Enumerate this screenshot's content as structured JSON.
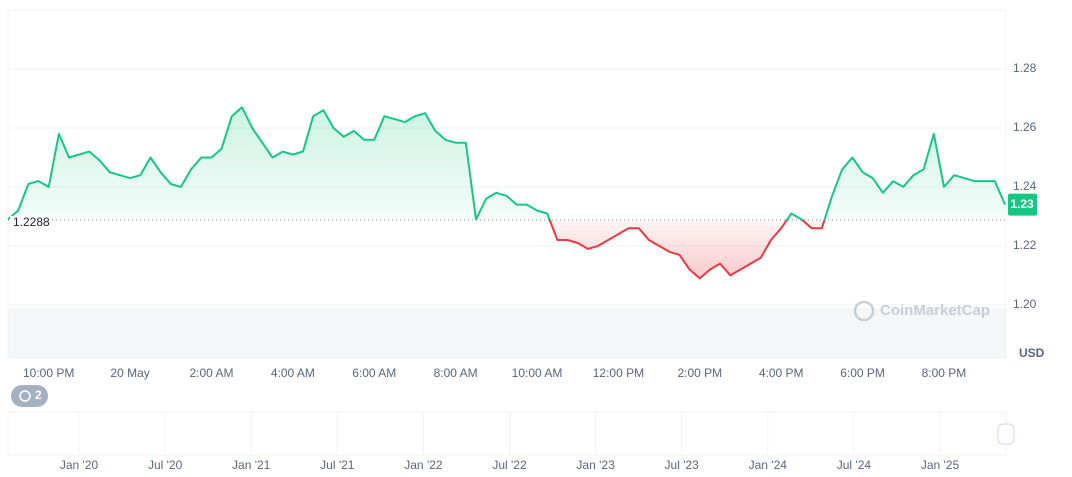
{
  "chart_data": {
    "type": "line",
    "categories": [
      null,
      null,
      null,
      null,
      "10:00 PM",
      null,
      null,
      null,
      null,
      null,
      null,
      null,
      "20 May",
      null,
      null,
      null,
      null,
      null,
      null,
      null,
      "2:00 AM",
      null,
      null,
      null,
      null,
      null,
      null,
      null,
      "4:00 AM",
      null,
      null,
      null,
      null,
      null,
      null,
      null,
      "6:00 AM",
      null,
      null,
      null,
      null,
      null,
      null,
      null,
      "8:00 AM",
      null,
      null,
      null,
      null,
      null,
      null,
      null,
      "10:00 AM",
      null,
      null,
      null,
      null,
      null,
      null,
      null,
      "12:00 PM",
      null,
      null,
      null,
      null,
      null,
      null,
      null,
      "2:00 PM",
      null,
      null,
      null,
      null,
      null,
      null,
      null,
      "4:00 PM",
      null,
      null,
      null,
      null,
      null,
      null,
      null,
      "6:00 PM",
      null,
      null,
      null,
      null,
      null,
      null,
      null,
      "8:00 PM",
      null,
      null,
      null,
      null,
      null,
      null
    ],
    "series": [
      {
        "values": [
          1.229,
          1.232,
          1.241,
          1.242,
          1.24,
          1.258,
          1.25,
          1.251,
          1.252,
          1.249,
          1.245,
          1.244,
          1.243,
          1.244,
          1.25,
          1.245,
          1.241,
          1.24,
          1.246,
          1.25,
          1.25,
          1.253,
          1.264,
          1.267,
          1.26,
          1.255,
          1.25,
          1.252,
          1.251,
          1.252,
          1.264,
          1.266,
          1.26,
          1.257,
          1.259,
          1.256,
          1.256,
          1.264,
          1.263,
          1.262,
          1.264,
          1.265,
          1.259,
          1.256,
          1.255,
          1.255,
          1.229,
          1.236,
          1.238,
          1.237,
          1.234,
          1.234,
          1.232,
          1.231,
          1.222,
          1.222,
          1.221,
          1.219,
          1.22,
          1.222,
          1.224,
          1.226,
          1.226,
          1.222,
          1.22,
          1.218,
          1.217,
          1.212,
          1.209,
          1.212,
          1.214,
          1.21,
          1.212,
          1.214,
          1.216,
          1.222,
          1.226,
          1.231,
          1.229,
          1.226,
          1.226,
          1.237,
          1.246,
          1.25,
          1.245,
          1.243,
          1.238,
          1.242,
          1.24,
          1.244,
          1.246,
          1.258,
          1.24,
          1.244,
          1.243,
          1.242,
          1.242,
          1.242,
          1.234
        ],
        "up_color": "#16c784",
        "down_color": "#ea3943"
      }
    ],
    "baseline": 1.2288,
    "current": {
      "value": 1.234,
      "label": "1.23"
    },
    "ylim": [
      1.182,
      1.3
    ],
    "yticks": [
      {
        "value": 1.2,
        "label": "1.20"
      },
      1.22,
      1.24,
      1.26,
      1.28
    ],
    "y_unit": "USD",
    "grid": true,
    "watermark": "CoinMarketCap",
    "badge": 2,
    "navigator": {
      "labels": [
        "Jan '20",
        "Jul '20",
        "Jan '21",
        "Jul '21",
        "Jan '22",
        "Jul '22",
        "Jan '23",
        "Jul '23",
        "Jan '24",
        "Jul '24",
        "Jan '25"
      ]
    }
  }
}
